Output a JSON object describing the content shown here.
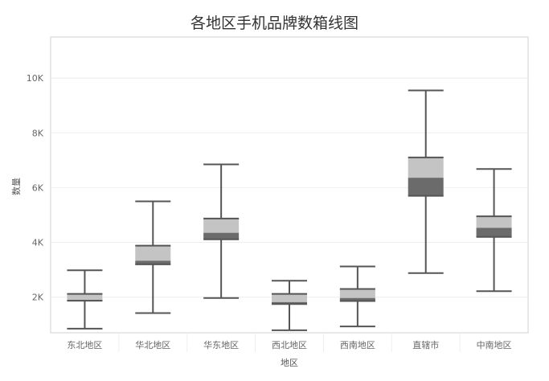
{
  "chart_data": {
    "type": "boxplot",
    "title": "各地区手机品牌数箱线图",
    "xlabel": "地区",
    "ylabel": "数量",
    "categories": [
      "东北地区",
      "华北地区",
      "华东地区",
      "西北地区",
      "西南地区",
      "直辖市",
      "中南地区"
    ],
    "ylim": [
      700,
      11500
    ],
    "yticks": [
      2000,
      4000,
      6000,
      8000,
      10000
    ],
    "ytick_labels": [
      "2K",
      "4K",
      "6K",
      "8K",
      "10K"
    ],
    "grid": true,
    "boxes": [
      {
        "category": "东北地区",
        "whisker_low": 850,
        "q1": 1870,
        "median": 1900,
        "q3": 2120,
        "whisker_high": 2980
      },
      {
        "category": "华北地区",
        "whisker_low": 1420,
        "q1": 3200,
        "median": 3330,
        "q3": 3880,
        "whisker_high": 5500
      },
      {
        "category": "华东地区",
        "whisker_low": 1970,
        "q1": 4110,
        "median": 4350,
        "q3": 4870,
        "whisker_high": 6850
      },
      {
        "category": "西北地区",
        "whisker_low": 790,
        "q1": 1750,
        "median": 1820,
        "q3": 2120,
        "whisker_high": 2600
      },
      {
        "category": "西南地区",
        "whisker_low": 930,
        "q1": 1860,
        "median": 1970,
        "q3": 2300,
        "whisker_high": 3120
      },
      {
        "category": "直辖市",
        "whisker_low": 2880,
        "q1": 5700,
        "median": 6360,
        "q3": 7100,
        "whisker_high": 9550
      },
      {
        "category": "中南地区",
        "whisker_low": 2220,
        "q1": 4200,
        "median": 4530,
        "q3": 4950,
        "whisker_high": 6680
      }
    ],
    "colors": {
      "lower_box": "#6b6b6b",
      "upper_box": "#c4c4c4",
      "whisker": "#555555",
      "grid": "#eeeeee",
      "frame": "#d0d0d0"
    }
  }
}
